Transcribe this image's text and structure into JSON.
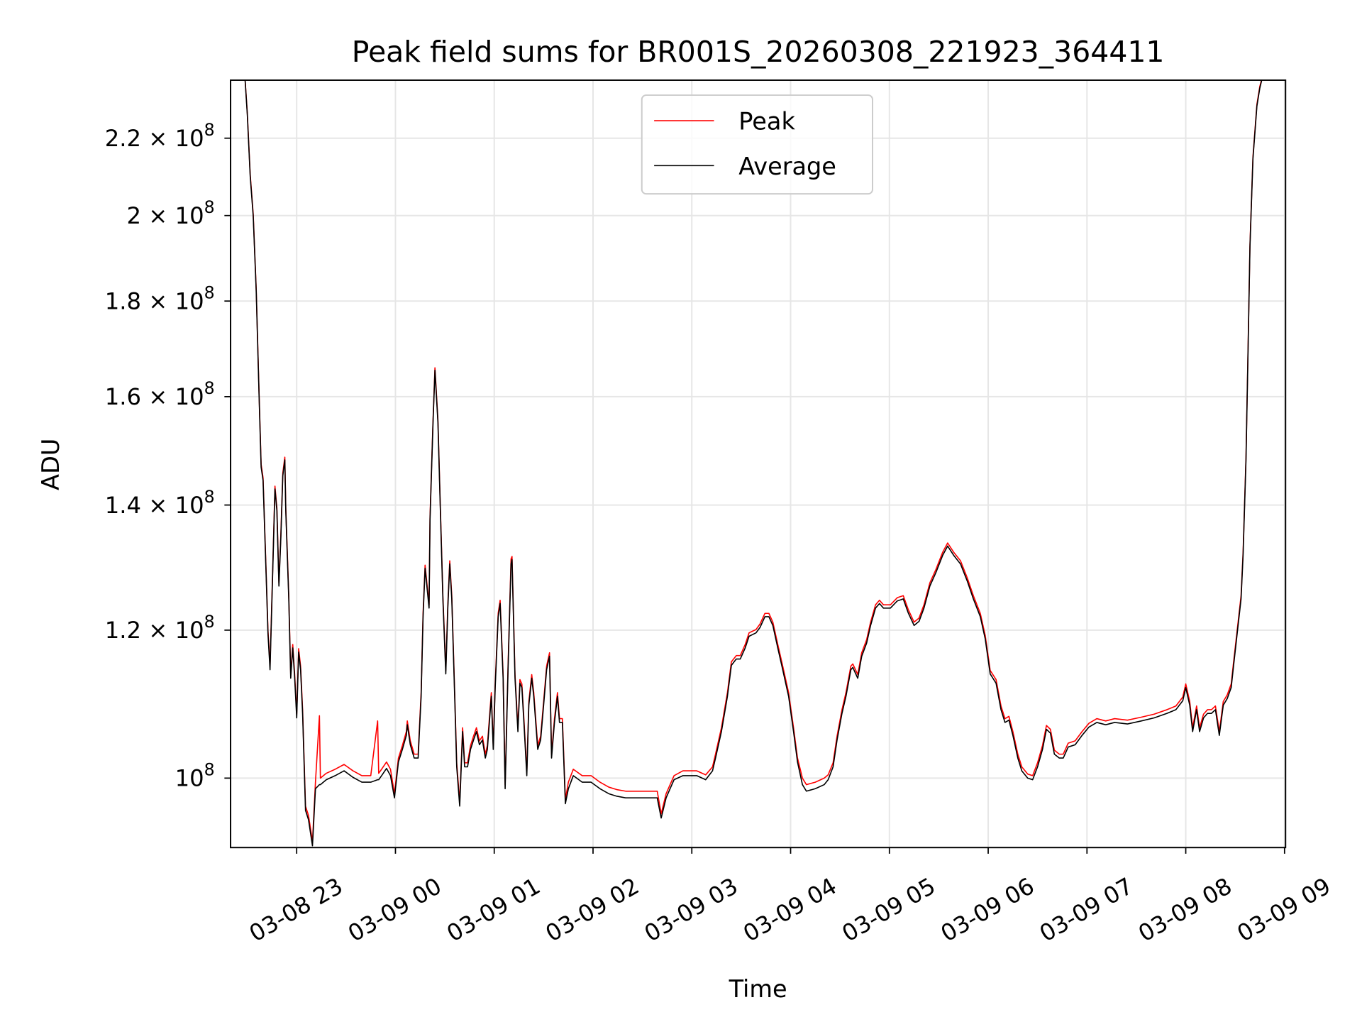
{
  "chart_data": {
    "type": "line",
    "title": "Peak field sums for BR001S_20260308_221923_364411",
    "xlabel": "Time",
    "ylabel": "ADU",
    "x_unit": "hours after 2026-03-08 23:00",
    "y_unit": "ADU x 1e8",
    "y_scale": "log",
    "xlim": [
      -0.669,
      10.01
    ],
    "ylim": [
      0.918,
      2.363
    ],
    "grid": true,
    "legend_position": "upper-center",
    "colors": {
      "Peak": "#ff0000",
      "Average": "#000000"
    },
    "legend": [
      {
        "name": "Peak",
        "color": "#ff0000"
      },
      {
        "name": "Average",
        "color": "#000000"
      }
    ],
    "x_ticks": [
      {
        "value": 0,
        "label": "03-08 23"
      },
      {
        "value": 1,
        "label": "03-09 00"
      },
      {
        "value": 2,
        "label": "03-09 01"
      },
      {
        "value": 3,
        "label": "03-09 02"
      },
      {
        "value": 4,
        "label": "03-09 03"
      },
      {
        "value": 5,
        "label": "03-09 04"
      },
      {
        "value": 6,
        "label": "03-09 05"
      },
      {
        "value": 7,
        "label": "03-09 06"
      },
      {
        "value": 8,
        "label": "03-09 07"
      },
      {
        "value": 9,
        "label": "03-09 08"
      },
      {
        "value": 10,
        "label": "03-09 09"
      }
    ],
    "y_ticks": [
      {
        "value": 1.0,
        "mantissa": "10",
        "exponent": "8"
      },
      {
        "value": 1.2,
        "mantissa": "1.2 × 10",
        "exponent": "8"
      },
      {
        "value": 1.4,
        "mantissa": "1.4 × 10",
        "exponent": "8"
      },
      {
        "value": 1.6,
        "mantissa": "1.6 × 10",
        "exponent": "8"
      },
      {
        "value": 1.8,
        "mantissa": "1.8 × 10",
        "exponent": "8"
      },
      {
        "value": 2.0,
        "mantissa": "2 × 10",
        "exponent": "8"
      },
      {
        "value": 2.2,
        "mantissa": "2.2 × 10",
        "exponent": "8"
      }
    ],
    "columns": [
      "t_hours",
      "Peak",
      "Average"
    ],
    "points": [
      [
        -0.53,
        2.4,
        2.4
      ],
      [
        -0.5,
        2.27,
        2.265
      ],
      [
        -0.47,
        2.104,
        2.099
      ],
      [
        -0.44,
        2.004,
        1.999
      ],
      [
        -0.41,
        1.828,
        1.823
      ],
      [
        -0.38,
        1.605,
        1.6
      ],
      [
        -0.36,
        1.472,
        1.467
      ],
      [
        -0.34,
        1.448,
        1.443
      ],
      [
        -0.31,
        1.293,
        1.288
      ],
      [
        -0.29,
        1.199,
        1.194
      ],
      [
        -0.27,
        1.148,
        1.143
      ],
      [
        -0.24,
        1.307,
        1.302
      ],
      [
        -0.22,
        1.433,
        1.428
      ],
      [
        -0.2,
        1.395,
        1.39
      ],
      [
        -0.18,
        1.272,
        1.267
      ],
      [
        -0.16,
        1.35,
        1.345
      ],
      [
        -0.14,
        1.456,
        1.451
      ],
      [
        -0.12,
        1.485,
        1.48
      ],
      [
        -0.11,
        1.395,
        1.39
      ],
      [
        -0.08,
        1.252,
        1.247
      ],
      [
        -0.06,
        1.136,
        1.131
      ],
      [
        -0.04,
        1.179,
        1.174
      ],
      [
        -0.02,
        1.136,
        1.131
      ],
      [
        0,
        1.082,
        1.077
      ],
      [
        0.02,
        1.173,
        1.168
      ],
      [
        0.04,
        1.148,
        1.143
      ],
      [
        0.06,
        1.088,
        1.083
      ],
      [
        0.09,
        0.966,
        0.961
      ],
      [
        0.12,
        0.955,
        0.95
      ],
      [
        0.16,
        0.925,
        0.92
      ],
      [
        0.19,
        0.995,
        0.987
      ],
      [
        0.23,
        1.08,
        0.992
      ],
      [
        0.24,
        1.0,
        0.992
      ],
      [
        0.3,
        1.006,
        0.998
      ],
      [
        0.39,
        1.011,
        1.003
      ],
      [
        0.48,
        1.017,
        1.009
      ],
      [
        0.57,
        1.009,
        1.001
      ],
      [
        0.66,
        1.003,
        0.995
      ],
      [
        0.75,
        1.003,
        0.995
      ],
      [
        0.82,
        1.073,
        0.998
      ],
      [
        0.83,
        1.006,
        0.998
      ],
      [
        0.86,
        1.011,
        1.003
      ],
      [
        0.91,
        1.02,
        1.012
      ],
      [
        0.95,
        1.011,
        1.003
      ],
      [
        0.99,
        0.981,
        0.976
      ],
      [
        1.03,
        1.025,
        1.02
      ],
      [
        1.07,
        1.041,
        1.036
      ],
      [
        1.11,
        1.059,
        1.054
      ],
      [
        1.12,
        1.073,
        1.068
      ],
      [
        1.15,
        1.047,
        1.042
      ],
      [
        1.19,
        1.03,
        1.025
      ],
      [
        1.23,
        1.03,
        1.025
      ],
      [
        1.26,
        1.111,
        1.106
      ],
      [
        1.28,
        1.225,
        1.22
      ],
      [
        1.3,
        1.3,
        1.295
      ],
      [
        1.34,
        1.238,
        1.233
      ],
      [
        1.35,
        1.38,
        1.375
      ],
      [
        1.38,
        1.554,
        1.549
      ],
      [
        1.4,
        1.658,
        1.653
      ],
      [
        1.43,
        1.554,
        1.549
      ],
      [
        1.45,
        1.425,
        1.42
      ],
      [
        1.48,
        1.252,
        1.247
      ],
      [
        1.51,
        1.142,
        1.137
      ],
      [
        1.53,
        1.238,
        1.233
      ],
      [
        1.55,
        1.307,
        1.302
      ],
      [
        1.57,
        1.252,
        1.247
      ],
      [
        1.6,
        1.111,
        1.106
      ],
      [
        1.62,
        1.019,
        1.014
      ],
      [
        1.65,
        0.971,
        0.966
      ],
      [
        1.68,
        1.064,
        1.059
      ],
      [
        1.7,
        1.019,
        1.014
      ],
      [
        1.73,
        1.019,
        1.014
      ],
      [
        1.76,
        1.041,
        1.036
      ],
      [
        1.79,
        1.053,
        1.048
      ],
      [
        1.82,
        1.064,
        1.059
      ],
      [
        1.85,
        1.047,
        1.042
      ],
      [
        1.88,
        1.053,
        1.048
      ],
      [
        1.91,
        1.03,
        1.025
      ],
      [
        1.93,
        1.041,
        1.036
      ],
      [
        1.97,
        1.111,
        1.106
      ],
      [
        1.99,
        1.041,
        1.036
      ],
      [
        2.01,
        1.123,
        1.118
      ],
      [
        2.04,
        1.225,
        1.22
      ],
      [
        2.06,
        1.245,
        1.24
      ],
      [
        2.09,
        1.136,
        1.131
      ],
      [
        2.11,
        0.992,
        0.987
      ],
      [
        2.14,
        1.148,
        1.143
      ],
      [
        2.17,
        1.31,
        1.302
      ],
      [
        2.18,
        1.314,
        1.309
      ],
      [
        2.21,
        1.136,
        1.131
      ],
      [
        2.24,
        1.064,
        1.059
      ],
      [
        2.26,
        1.129,
        1.124
      ],
      [
        2.28,
        1.123,
        1.118
      ],
      [
        2.3,
        1.076,
        1.071
      ],
      [
        2.33,
        1.008,
        1.003
      ],
      [
        2.35,
        1.099,
        1.094
      ],
      [
        2.38,
        1.136,
        1.131
      ],
      [
        2.4,
        1.111,
        1.106
      ],
      [
        2.42,
        1.076,
        1.071
      ],
      [
        2.44,
        1.041,
        1.036
      ],
      [
        2.47,
        1.053,
        1.048
      ],
      [
        2.5,
        1.099,
        1.094
      ],
      [
        2.53,
        1.148,
        1.143
      ],
      [
        2.56,
        1.167,
        1.162
      ],
      [
        2.58,
        1.03,
        1.025
      ],
      [
        2.61,
        1.076,
        1.071
      ],
      [
        2.64,
        1.111,
        1.106
      ],
      [
        2.66,
        1.076,
        1.071
      ],
      [
        2.69,
        1.076,
        1.071
      ],
      [
        2.72,
        0.974,
        0.969
      ],
      [
        2.75,
        0.995,
        0.987
      ],
      [
        2.8,
        1.011,
        1.003
      ],
      [
        2.89,
        1.003,
        0.995
      ],
      [
        2.98,
        1.003,
        0.995
      ],
      [
        3.07,
        0.995,
        0.987
      ],
      [
        3.16,
        0.989,
        0.981
      ],
      [
        3.24,
        0.986,
        0.978
      ],
      [
        3.33,
        0.984,
        0.976
      ],
      [
        3.42,
        0.984,
        0.976
      ],
      [
        3.51,
        0.984,
        0.976
      ],
      [
        3.6,
        0.984,
        0.976
      ],
      [
        3.65,
        0.984,
        0.976
      ],
      [
        3.69,
        0.957,
        0.952
      ],
      [
        3.74,
        0.981,
        0.976
      ],
      [
        3.78,
        0.992,
        0.987
      ],
      [
        3.82,
        1.003,
        0.998
      ],
      [
        3.91,
        1.009,
        1.003
      ],
      [
        4.05,
        1.009,
        1.003
      ],
      [
        4.14,
        1.004,
        0.998
      ],
      [
        4.21,
        1.014,
        1.009
      ],
      [
        4.24,
        1.03,
        1.025
      ],
      [
        4.3,
        1.064,
        1.059
      ],
      [
        4.36,
        1.111,
        1.106
      ],
      [
        4.4,
        1.154,
        1.149
      ],
      [
        4.45,
        1.163,
        1.158
      ],
      [
        4.49,
        1.163,
        1.158
      ],
      [
        4.54,
        1.179,
        1.174
      ],
      [
        4.58,
        1.196,
        1.191
      ],
      [
        4.65,
        1.201,
        1.196
      ],
      [
        4.69,
        1.209,
        1.204
      ],
      [
        4.74,
        1.225,
        1.22
      ],
      [
        4.78,
        1.225,
        1.22
      ],
      [
        4.82,
        1.212,
        1.207
      ],
      [
        4.87,
        1.179,
        1.174
      ],
      [
        4.92,
        1.148,
        1.143
      ],
      [
        4.98,
        1.111,
        1.106
      ],
      [
        5.03,
        1.064,
        1.059
      ],
      [
        5.07,
        1.025,
        1.02
      ],
      [
        5.12,
        1.0,
        0.992
      ],
      [
        5.16,
        0.992,
        0.984
      ],
      [
        5.25,
        0.995,
        0.987
      ],
      [
        5.34,
        1.0,
        0.992
      ],
      [
        5.38,
        1.004,
        0.998
      ],
      [
        5.43,
        1.019,
        1.014
      ],
      [
        5.47,
        1.053,
        1.048
      ],
      [
        5.52,
        1.088,
        1.083
      ],
      [
        5.56,
        1.111,
        1.106
      ],
      [
        5.61,
        1.148,
        1.143
      ],
      [
        5.63,
        1.151,
        1.146
      ],
      [
        5.68,
        1.136,
        1.131
      ],
      [
        5.72,
        1.167,
        1.162
      ],
      [
        5.77,
        1.186,
        1.181
      ],
      [
        5.81,
        1.212,
        1.207
      ],
      [
        5.86,
        1.238,
        1.233
      ],
      [
        5.9,
        1.245,
        1.24
      ],
      [
        5.94,
        1.238,
        1.233
      ],
      [
        6.01,
        1.238,
        1.233
      ],
      [
        6.08,
        1.249,
        1.244
      ],
      [
        6.14,
        1.252,
        1.247
      ],
      [
        6.19,
        1.231,
        1.226
      ],
      [
        6.25,
        1.212,
        1.207
      ],
      [
        6.3,
        1.218,
        1.213
      ],
      [
        6.35,
        1.238,
        1.233
      ],
      [
        6.41,
        1.272,
        1.267
      ],
      [
        6.47,
        1.293,
        1.288
      ],
      [
        6.54,
        1.321,
        1.316
      ],
      [
        6.59,
        1.336,
        1.331
      ],
      [
        6.65,
        1.321,
        1.316
      ],
      [
        6.72,
        1.307,
        1.302
      ],
      [
        6.79,
        1.279,
        1.274
      ],
      [
        6.85,
        1.252,
        1.247
      ],
      [
        6.92,
        1.225,
        1.22
      ],
      [
        6.97,
        1.192,
        1.187
      ],
      [
        7.02,
        1.142,
        1.137
      ],
      [
        7.08,
        1.129,
        1.124
      ],
      [
        7.13,
        1.093,
        1.088
      ],
      [
        7.17,
        1.076,
        1.071
      ],
      [
        7.21,
        1.079,
        1.074
      ],
      [
        7.25,
        1.059,
        1.054
      ],
      [
        7.3,
        1.03,
        1.025
      ],
      [
        7.34,
        1.014,
        1.009
      ],
      [
        7.4,
        1.005,
        1.0
      ],
      [
        7.45,
        1.003,
        0.998
      ],
      [
        7.5,
        1.019,
        1.014
      ],
      [
        7.55,
        1.041,
        1.036
      ],
      [
        7.59,
        1.067,
        1.062
      ],
      [
        7.63,
        1.062,
        1.057
      ],
      [
        7.67,
        1.035,
        1.03
      ],
      [
        7.72,
        1.03,
        1.025
      ],
      [
        7.76,
        1.03,
        1.025
      ],
      [
        7.81,
        1.044,
        1.039
      ],
      [
        7.88,
        1.047,
        1.042
      ],
      [
        7.95,
        1.059,
        1.054
      ],
      [
        8.02,
        1.07,
        1.065
      ],
      [
        8.1,
        1.076,
        1.071
      ],
      [
        8.19,
        1.073,
        1.068
      ],
      [
        8.28,
        1.076,
        1.071
      ],
      [
        8.41,
        1.074,
        1.069
      ],
      [
        8.55,
        1.078,
        1.073
      ],
      [
        8.68,
        1.082,
        1.077
      ],
      [
        8.81,
        1.088,
        1.083
      ],
      [
        8.9,
        1.093,
        1.088
      ],
      [
        8.97,
        1.105,
        1.1
      ],
      [
        9.0,
        1.123,
        1.118
      ],
      [
        9.04,
        1.099,
        1.094
      ],
      [
        9.07,
        1.064,
        1.059
      ],
      [
        9.11,
        1.093,
        1.088
      ],
      [
        9.14,
        1.064,
        1.059
      ],
      [
        9.18,
        1.082,
        1.077
      ],
      [
        9.22,
        1.088,
        1.083
      ],
      [
        9.26,
        1.088,
        1.083
      ],
      [
        9.3,
        1.093,
        1.088
      ],
      [
        9.34,
        1.059,
        1.054
      ],
      [
        9.38,
        1.099,
        1.094
      ],
      [
        9.42,
        1.108,
        1.103
      ],
      [
        9.46,
        1.123,
        1.118
      ],
      [
        9.48,
        1.148,
        1.143
      ],
      [
        9.52,
        1.199,
        1.194
      ],
      [
        9.56,
        1.252,
        1.247
      ],
      [
        9.58,
        1.321,
        1.316
      ],
      [
        9.61,
        1.485,
        1.48
      ],
      [
        9.63,
        1.694,
        1.689
      ],
      [
        9.65,
        1.929,
        1.924
      ],
      [
        9.68,
        2.15,
        2.145
      ],
      [
        9.72,
        2.294,
        2.289
      ],
      [
        9.75,
        2.345,
        2.34
      ],
      [
        9.8,
        2.4,
        2.4
      ]
    ]
  }
}
